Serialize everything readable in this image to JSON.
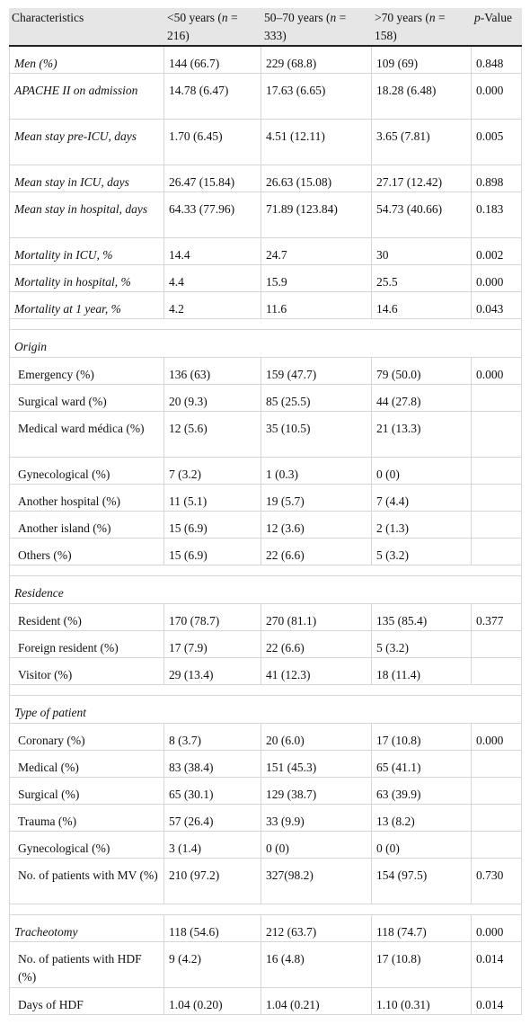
{
  "header": {
    "characteristics": "Characteristics",
    "g1_a": "<50 years (",
    "g1_n": "n",
    "g1_b": " = 216)",
    "g2_a": "50–70 years (",
    "g2_n": "n",
    "g2_b": " = 333)",
    "g3_a": ">70 years (",
    "g3_n": "n",
    "g3_b": " = 158)",
    "p_a": "p",
    "p_b": "-Value"
  },
  "rows": [
    {
      "label": "Men (%)",
      "v1": "144 (66.7)",
      "v2": "229 (68.8)",
      "v3": "109 (69)",
      "p": "0.848"
    },
    {
      "label": "APACHE II on admission",
      "v1": "14.78 (6.47)",
      "v2": "17.63 (6.65)",
      "v3": "18.28 (6.48)",
      "p": "0.000"
    },
    {
      "label": "Mean stay pre-ICU, days",
      "v1": "1.70 (6.45)",
      "v2": "4.51 (12.11)",
      "v3": "3.65 (7.81)",
      "p": "0.005"
    },
    {
      "label": "Mean stay in ICU, days",
      "v1": "26.47 (15.84)",
      "v2": "26.63 (15.08)",
      "v3": "27.17 (12.42)",
      "p": "0.898"
    },
    {
      "label": "Mean stay in hospital, days",
      "v1": "64.33 (77.96)",
      "v2": "71.89 (123.84)",
      "v3": "54.73 (40.66)",
      "p": "0.183"
    },
    {
      "label": "Mortality in ICU, %",
      "v1": "14.4",
      "v2": "24.7",
      "v3": "30",
      "p": "0.002"
    },
    {
      "label": "Mortality in hospital, %",
      "v1": "4.4",
      "v2": "15.9",
      "v3": "25.5",
      "p": "0.000"
    },
    {
      "label": "Mortality at 1 year, %",
      "v1": "4.2",
      "v2": "11.6",
      "v3": "14.6",
      "p": "0.043"
    }
  ],
  "origin": {
    "title": "Origin",
    "rows": [
      {
        "label": "Emergency (%)",
        "v1": "136 (63)",
        "v2": "159 (47.7)",
        "v3": "79 (50.0)",
        "p": "0.000"
      },
      {
        "label": "Surgical ward (%)",
        "v1": "20 (9.3)",
        "v2": "85 (25.5)",
        "v3": "44 (27.8)",
        "p": ""
      },
      {
        "label": "Medical ward médica (%)",
        "v1": "12 (5.6)",
        "v2": "35 (10.5)",
        "v3": "21 (13.3)",
        "p": ""
      },
      {
        "label": "Gynecological (%)",
        "v1": "7 (3.2)",
        "v2": "1 (0.3)",
        "v3": "0 (0)",
        "p": ""
      },
      {
        "label": "Another hospital (%)",
        "v1": "11 (5.1)",
        "v2": "19 (5.7)",
        "v3": "7 (4.4)",
        "p": ""
      },
      {
        "label": "Another island (%)",
        "v1": "15 (6.9)",
        "v2": "12 (3.6)",
        "v3": "2 (1.3)",
        "p": ""
      },
      {
        "label": "Others (%)",
        "v1": "15 (6.9)",
        "v2": "22 (6.6)",
        "v3": "5 (3.2)",
        "p": ""
      }
    ]
  },
  "residence": {
    "title": "Residence",
    "rows": [
      {
        "label": "Resident (%)",
        "v1": "170 (78.7)",
        "v2": "270 (81.1)",
        "v3": "135 (85.4)",
        "p": "0.377"
      },
      {
        "label": "Foreign resident (%)",
        "v1": "17 (7.9)",
        "v2": "22 (6.6)",
        "v3": "5 (3.2)",
        "p": ""
      },
      {
        "label": "Visitor (%)",
        "v1": "29 (13.4)",
        "v2": "41 (12.3)",
        "v3": "18 (11.4)",
        "p": ""
      }
    ]
  },
  "patient_type": {
    "title": "Type of patient",
    "rows": [
      {
        "label": "Coronary (%)",
        "v1": "8 (3.7)",
        "v2": "20 (6.0)",
        "v3": "17 (10.8)",
        "p": "0.000"
      },
      {
        "label": "Medical (%)",
        "v1": "83 (38.4)",
        "v2": "151 (45.3)",
        "v3": "65 (41.1)",
        "p": ""
      },
      {
        "label": "Surgical (%)",
        "v1": "65 (30.1)",
        "v2": "129 (38.7)",
        "v3": "63 (39.9)",
        "p": ""
      },
      {
        "label": "Trauma (%)",
        "v1": "57 (26.4)",
        "v2": "33 (9.9)",
        "v3": "13 (8.2)",
        "p": ""
      },
      {
        "label": "Gynecological (%)",
        "v1": "3 (1.4)",
        "v2": "0 (0)",
        "v3": "0 (0)",
        "p": ""
      },
      {
        "label": "No. of patients with MV (%)",
        "v1": "210 (97.2)",
        "v2": "327(98.2)",
        "v3": "154 (97.5)",
        "p": "0.730"
      }
    ]
  },
  "tail": {
    "tracheotomy": {
      "label": "Tracheotomy",
      "v1": "118 (54.6)",
      "v2": "212 (63.7)",
      "v3": "118 (74.7)",
      "p": "0.000"
    },
    "hdf_patients": {
      "label": "No. of patients with HDF (%)",
      "v1": "9 (4.2)",
      "v2": "16 (4.8)",
      "v3": "17 (10.8)",
      "p": "0.014"
    },
    "hdf_days": {
      "label": "Days of HDF",
      "v1": "1.04 (0.20)",
      "v2": "1.04 (0.21)",
      "v3": "1.10 (0.31)",
      "p": "0.014"
    }
  }
}
